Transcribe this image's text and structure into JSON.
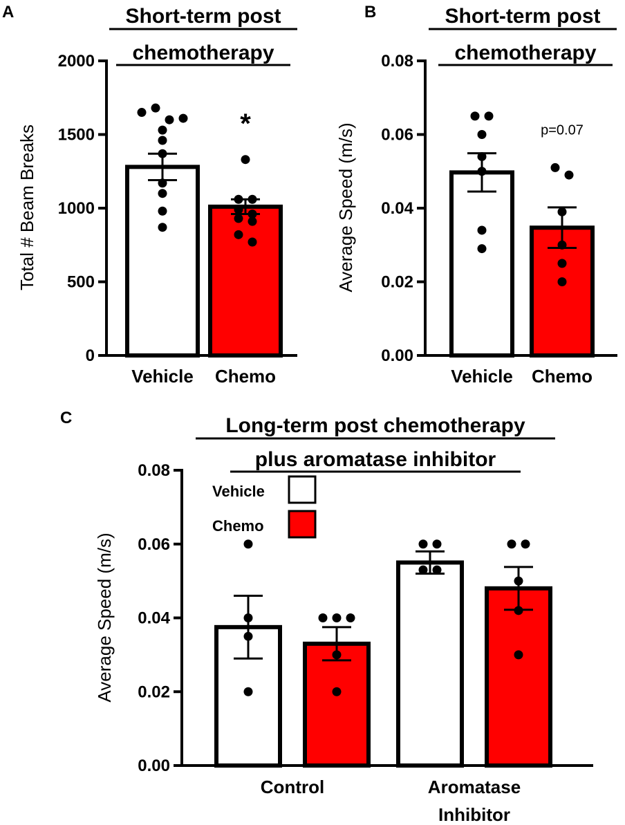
{
  "chart_data": [
    {
      "panel": "A",
      "type": "bar",
      "title": [
        "Short-term post",
        "chemotherapy"
      ],
      "xlabel": "",
      "ylabel": "Total # Beam Breaks",
      "ylim": [
        0,
        2000
      ],
      "yticks": [
        0,
        500,
        1000,
        1500,
        2000
      ],
      "ytick_labels": [
        "0",
        "500",
        "1000",
        "1500",
        "2000"
      ],
      "categories": [
        "Vehicle",
        "Chemo"
      ],
      "bars": [
        {
          "category": "Vehicle",
          "mean": 1280,
          "sem": 90,
          "color": "#ffffff",
          "points": [
            1650,
            1680,
            1600,
            1610,
            1530,
            1460,
            1370,
            1170,
            1100,
            980,
            870
          ]
        },
        {
          "category": "Chemo",
          "mean": 1010,
          "sem": 50,
          "color": "#ff0000",
          "points": [
            1330,
            1060,
            1060,
            990,
            960,
            930,
            910,
            820,
            770
          ]
        }
      ],
      "annotation": "*",
      "annotation_category": "Chemo",
      "annotation_value": 1550
    },
    {
      "panel": "B",
      "type": "bar",
      "title": [
        "Short-term post",
        "chemotherapy"
      ],
      "xlabel": "",
      "ylabel": "Average Speed (m/s)",
      "ylim": [
        0,
        0.08
      ],
      "yticks": [
        0,
        0.02,
        0.04,
        0.06,
        0.08
      ],
      "ytick_labels": [
        "0.00",
        "0.02",
        "0.04",
        "0.06",
        "0.08"
      ],
      "categories": [
        "Vehicle",
        "Chemo"
      ],
      "bars": [
        {
          "category": "Vehicle",
          "mean": 0.0497,
          "sem": 0.0052,
          "color": "#ffffff",
          "points": [
            0.065,
            0.065,
            0.06,
            0.054,
            0.05,
            0.034,
            0.029
          ]
        },
        {
          "category": "Chemo",
          "mean": 0.0347,
          "sem": 0.0055,
          "color": "#ff0000",
          "points": [
            0.051,
            0.049,
            0.039,
            0.03,
            0.025,
            0.02
          ]
        }
      ],
      "annotation": "p=0.07",
      "annotation_category": "Chemo",
      "annotation_value": 0.0615
    },
    {
      "panel": "C",
      "type": "bar",
      "title": [
        "Long-term post chemotherapy",
        "plus aromatase inhibitor"
      ],
      "xlabel": "",
      "ylabel": "Average Speed (m/s)",
      "ylim": [
        0,
        0.08
      ],
      "yticks": [
        0,
        0.02,
        0.04,
        0.06,
        0.08
      ],
      "ytick_labels": [
        "0.00",
        "0.02",
        "0.04",
        "0.06",
        "0.08"
      ],
      "categories": [
        [
          "Control"
        ],
        [
          "Aromatase",
          "Inhibitor"
        ]
      ],
      "legend": [
        {
          "label": "Vehicle",
          "color": "#ffffff"
        },
        {
          "label": "Chemo",
          "color": "#ff0000"
        }
      ],
      "legend_position": "top-left",
      "series": [
        {
          "name": "Vehicle",
          "color": "#ffffff",
          "values": [
            0.0375,
            0.055
          ],
          "sem": [
            0.0085,
            0.003
          ],
          "points": [
            [
              0.06,
              0.04,
              0.035,
              0.02
            ],
            [
              0.06,
              0.06,
              0.053,
              0.053
            ]
          ]
        },
        {
          "name": "Chemo",
          "color": "#ff0000",
          "values": [
            0.033,
            0.048
          ],
          "sem": [
            0.0045,
            0.0058
          ],
          "points": [
            [
              0.04,
              0.04,
              0.04,
              0.03,
              0.02
            ],
            [
              0.06,
              0.06,
              0.05,
              0.042,
              0.03
            ]
          ]
        }
      ]
    }
  ]
}
